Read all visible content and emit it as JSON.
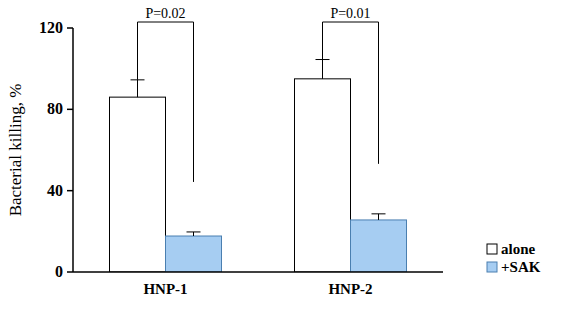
{
  "chart_data": {
    "type": "bar",
    "y_label": "Bacterial killing, %",
    "categories": [
      "HNP-1",
      "HNP-2"
    ],
    "series": [
      {
        "name": "alone",
        "color": "#ffffff",
        "values": [
          86,
          95
        ],
        "errors": [
          8.5,
          9.5
        ]
      },
      {
        "name": "+SAK",
        "color": "#a6cdf2",
        "values": [
          17.7,
          25.6
        ],
        "errors": [
          2,
          3
        ]
      }
    ],
    "annotations": [
      "P=0.02",
      "P=0.01"
    ],
    "ylim": [
      0,
      120
    ],
    "yticks": [
      0,
      40,
      80,
      120
    ],
    "grid": false,
    "legend": "right"
  }
}
